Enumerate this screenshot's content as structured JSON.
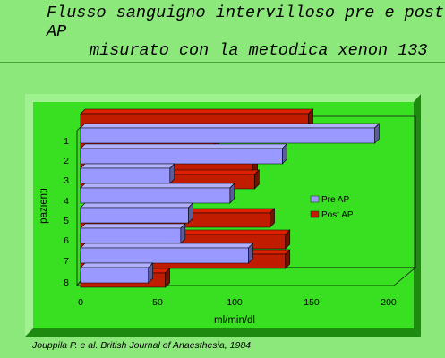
{
  "slide": {
    "title_line1": "Flusso sanguigno intervilloso pre e post AP",
    "title_line2": "misurato con la metodica xenon 133",
    "caption": "Jouppila P. e al. British Journal of Anaesthesia, 1984"
  },
  "chart_data": {
    "type": "bar",
    "orientation": "horizontal",
    "style": "3d",
    "title": "",
    "xlabel": "ml/min/dl",
    "ylabel": "pazienti",
    "categories": [
      "1",
      "2",
      "3",
      "4",
      "5",
      "6",
      "7",
      "8"
    ],
    "series": [
      {
        "name": "Pre AP",
        "color": "#9999ff",
        "values": [
          191,
          131,
          58,
          97,
          70,
          65,
          109,
          44
        ]
      },
      {
        "name": "Post AP",
        "color": "#c11c00",
        "values": [
          148,
          87,
          112,
          113,
          123,
          133,
          133,
          55
        ]
      }
    ],
    "xlim": [
      0,
      200
    ],
    "xticks": [
      "0",
      "50",
      "100",
      "150",
      "200"
    ],
    "grid": false,
    "legend": "right",
    "plot_background": "#39e021",
    "page_background": "#8de87c"
  }
}
